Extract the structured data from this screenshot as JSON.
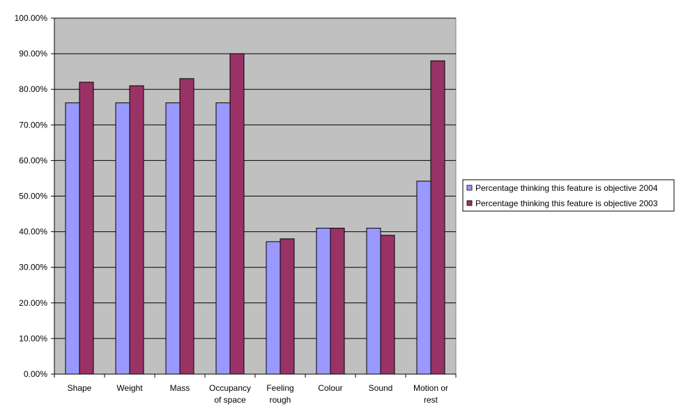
{
  "chart_data": {
    "type": "bar",
    "categories": [
      [
        "Shape"
      ],
      [
        "Weight"
      ],
      [
        "Mass"
      ],
      [
        "Occupancy",
        "of space"
      ],
      [
        "Feeling",
        "rough"
      ],
      [
        "Colour"
      ],
      [
        "Sound"
      ],
      [
        "Motion or",
        "rest"
      ]
    ],
    "series": [
      {
        "name": "Percentage thinking this feature is objective 2004",
        "values": [
          76.2,
          76.2,
          76.2,
          76.2,
          37.2,
          41.0,
          41.0,
          54.2
        ],
        "color": "#9999ff"
      },
      {
        "name": "Percentage thinking this feature is objective 2003",
        "values": [
          82.0,
          81.0,
          83.0,
          90.0,
          38.0,
          41.0,
          39.0,
          88.0
        ],
        "color": "#993366"
      }
    ],
    "ylim": [
      0,
      100
    ],
    "y_ticks": [
      "0.00%",
      "10.00%",
      "20.00%",
      "30.00%",
      "40.00%",
      "50.00%",
      "60.00%",
      "70.00%",
      "80.00%",
      "90.00%",
      "100.00%"
    ],
    "title": "",
    "xlabel": "",
    "ylabel": "",
    "grid": true,
    "plot_background": "#c0c0c0",
    "legend_position": "right"
  }
}
